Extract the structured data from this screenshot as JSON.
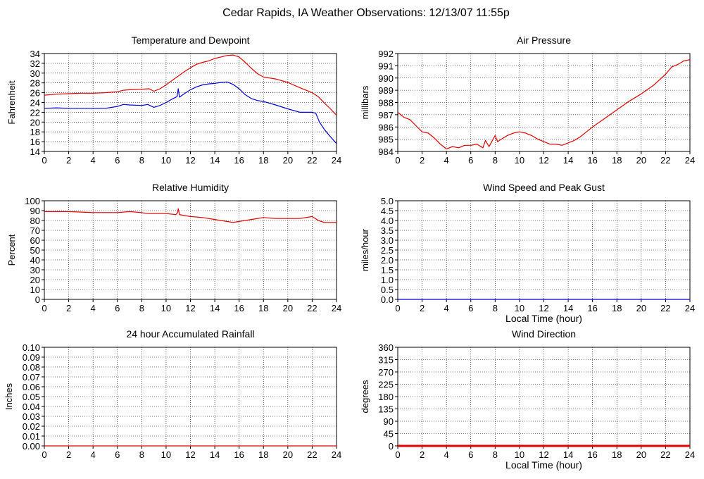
{
  "page_title": "Cedar Rapids, IA Weather Observations: 12/13/07 11:55p",
  "colors": {
    "primary_series": "#e00000",
    "secondary_series": "#0000d0",
    "grid": "#000000",
    "background": "#ffffff"
  },
  "chart_data": [
    {
      "id": "temp",
      "type": "line",
      "title": "Temperature and Dewpoint",
      "xlabel": "",
      "ylabel": "Fahrenheit",
      "xlim": [
        0,
        24
      ],
      "ylim": [
        14,
        34
      ],
      "xticks": [
        0,
        2,
        4,
        6,
        8,
        10,
        12,
        14,
        16,
        18,
        20,
        22,
        24
      ],
      "yticks": [
        14,
        16,
        18,
        20,
        22,
        24,
        26,
        28,
        30,
        32,
        34
      ],
      "grid": true,
      "series": [
        {
          "color": "#e00000",
          "x": [
            0,
            1,
            2,
            3,
            4,
            5,
            6,
            6.5,
            7,
            8,
            8.6,
            9,
            9.5,
            10,
            10.5,
            11,
            11.5,
            12,
            12.5,
            13,
            13.5,
            14,
            14.5,
            15,
            15.5,
            16,
            16.5,
            17,
            17.5,
            18,
            19,
            20,
            21,
            22,
            22.5,
            23,
            23.5,
            24
          ],
          "values": [
            25.5,
            25.7,
            25.8,
            25.9,
            25.9,
            26.0,
            26.2,
            26.5,
            26.6,
            26.7,
            26.8,
            26.3,
            26.8,
            27.6,
            28.5,
            29.4,
            30.3,
            31.1,
            31.8,
            32.2,
            32.5,
            33.0,
            33.3,
            33.6,
            33.7,
            33.3,
            32.2,
            31.0,
            29.9,
            29.2,
            28.8,
            28.1,
            27.0,
            26.0,
            25.2,
            23.9,
            22.7,
            21.4
          ]
        },
        {
          "color": "#0000d0",
          "x": [
            0,
            1,
            2,
            3,
            4,
            5,
            6,
            6.5,
            7,
            8,
            8.5,
            9,
            9.5,
            10,
            10.5,
            10.9,
            11.0,
            11.1,
            11.5,
            12,
            12.5,
            13,
            13.5,
            14,
            14.5,
            15,
            15.5,
            16,
            16.5,
            17,
            17.5,
            18,
            19,
            20,
            21,
            22,
            22.3,
            22.6,
            23,
            23.5,
            24
          ],
          "values": [
            22.8,
            22.9,
            22.8,
            22.8,
            22.8,
            22.8,
            23.2,
            23.6,
            23.5,
            23.4,
            23.6,
            23.0,
            23.4,
            24.0,
            24.7,
            25.2,
            26.8,
            25.1,
            25.8,
            26.6,
            27.2,
            27.6,
            27.8,
            27.9,
            28.1,
            28.2,
            27.7,
            26.8,
            25.6,
            24.8,
            24.4,
            24.2,
            23.5,
            22.7,
            22.0,
            22.0,
            21.8,
            20.0,
            18.5,
            17.0,
            15.6
          ]
        }
      ]
    },
    {
      "id": "pressure",
      "type": "line",
      "title": "Air Pressure",
      "xlabel": "",
      "ylabel": "millibars",
      "xlim": [
        0,
        24
      ],
      "ylim": [
        984,
        992
      ],
      "xticks": [
        0,
        2,
        4,
        6,
        8,
        10,
        12,
        14,
        16,
        18,
        20,
        22,
        24
      ],
      "yticks": [
        984,
        985,
        986,
        987,
        988,
        989,
        990,
        991,
        992
      ],
      "grid": true,
      "series": [
        {
          "color": "#e00000",
          "x": [
            0,
            0.5,
            1,
            1.5,
            2,
            2.5,
            3,
            3.5,
            4,
            4.5,
            5,
            5.5,
            6,
            6.5,
            7,
            7.2,
            7.5,
            8,
            8.2,
            8.5,
            9,
            9.5,
            10,
            10.5,
            11,
            11.5,
            12,
            12.5,
            13,
            13.5,
            14,
            14.5,
            15,
            15.5,
            16,
            17,
            18,
            19,
            20,
            21,
            22,
            22.5,
            23,
            23.5,
            24
          ],
          "values": [
            987.2,
            986.8,
            986.6,
            986.1,
            985.6,
            985.5,
            985.1,
            984.6,
            984.2,
            984.4,
            984.3,
            984.5,
            984.5,
            984.6,
            984.3,
            984.9,
            984.4,
            985.3,
            984.8,
            985.0,
            985.3,
            985.5,
            985.6,
            985.5,
            985.3,
            985.0,
            984.8,
            984.6,
            984.6,
            984.5,
            984.7,
            984.9,
            985.2,
            985.6,
            986.0,
            986.7,
            987.4,
            988.1,
            988.7,
            989.4,
            990.3,
            990.9,
            991.1,
            991.4,
            991.5
          ]
        }
      ]
    },
    {
      "id": "humidity",
      "type": "line",
      "title": "Relative Humidity",
      "xlabel": "",
      "ylabel": "Percent",
      "xlim": [
        0,
        24
      ],
      "ylim": [
        0,
        100
      ],
      "xticks": [
        0,
        2,
        4,
        6,
        8,
        10,
        12,
        14,
        16,
        18,
        20,
        22,
        24
      ],
      "yticks": [
        0,
        10,
        20,
        30,
        40,
        50,
        60,
        70,
        80,
        90,
        100
      ],
      "grid": true,
      "series": [
        {
          "color": "#e00000",
          "x": [
            0,
            2,
            4,
            6,
            7,
            8,
            8.5,
            9,
            10,
            10.8,
            10.95,
            11.0,
            11.1,
            11.5,
            12,
            13,
            14,
            15,
            15.5,
            16,
            17,
            18,
            19,
            20,
            21,
            22,
            22.5,
            23,
            24
          ],
          "values": [
            89,
            89,
            88,
            88,
            89,
            88,
            87,
            87,
            87,
            86,
            88,
            92,
            86,
            85,
            84,
            83,
            81,
            79,
            78,
            79,
            81,
            83,
            82,
            82,
            82,
            84,
            80,
            78,
            78
          ]
        }
      ]
    },
    {
      "id": "wind",
      "type": "line",
      "title": "Wind Speed and Peak Gust",
      "xlabel": "Local Time (hour)",
      "ylabel": "miles/hour",
      "xlim": [
        0,
        24
      ],
      "ylim": [
        0,
        5
      ],
      "xticks": [
        0,
        2,
        4,
        6,
        8,
        10,
        12,
        14,
        16,
        18,
        20,
        22,
        24
      ],
      "yticks": [
        "0.0",
        "0.5",
        "1.0",
        "1.5",
        "2.0",
        "2.5",
        "3.0",
        "3.5",
        "4.0",
        "4.5",
        "5.0"
      ],
      "grid": true,
      "series": [
        {
          "color": "#0000d0",
          "x": [
            0,
            24
          ],
          "values": [
            0,
            0
          ]
        }
      ]
    },
    {
      "id": "rain",
      "type": "line",
      "title": "24 hour Accumulated Rainfall",
      "xlabel": "",
      "ylabel": "Inches",
      "xlim": [
        0,
        24
      ],
      "ylim": [
        0,
        0.1
      ],
      "xticks": [
        0,
        2,
        4,
        6,
        8,
        10,
        12,
        14,
        16,
        18,
        20,
        22,
        24
      ],
      "yticks": [
        "0.00",
        "0.01",
        "0.02",
        "0.03",
        "0.04",
        "0.05",
        "0.06",
        "0.07",
        "0.08",
        "0.09",
        "0.10"
      ],
      "grid": true,
      "series": [
        {
          "color": "#e00000",
          "x": [
            0,
            24
          ],
          "values": [
            0,
            0
          ]
        }
      ]
    },
    {
      "id": "direction",
      "type": "line",
      "title": "Wind Direction",
      "xlabel": "Local Time (hour)",
      "ylabel": "degrees",
      "xlim": [
        0,
        24
      ],
      "ylim": [
        0,
        360
      ],
      "xticks": [
        0,
        2,
        4,
        6,
        8,
        10,
        12,
        14,
        16,
        18,
        20,
        22,
        24
      ],
      "yticks": [
        0,
        45,
        90,
        135,
        180,
        225,
        270,
        315,
        360
      ],
      "grid": true,
      "series": [
        {
          "color": "#e00000",
          "x": [
            0,
            24
          ],
          "values": [
            0,
            0
          ]
        }
      ]
    }
  ]
}
